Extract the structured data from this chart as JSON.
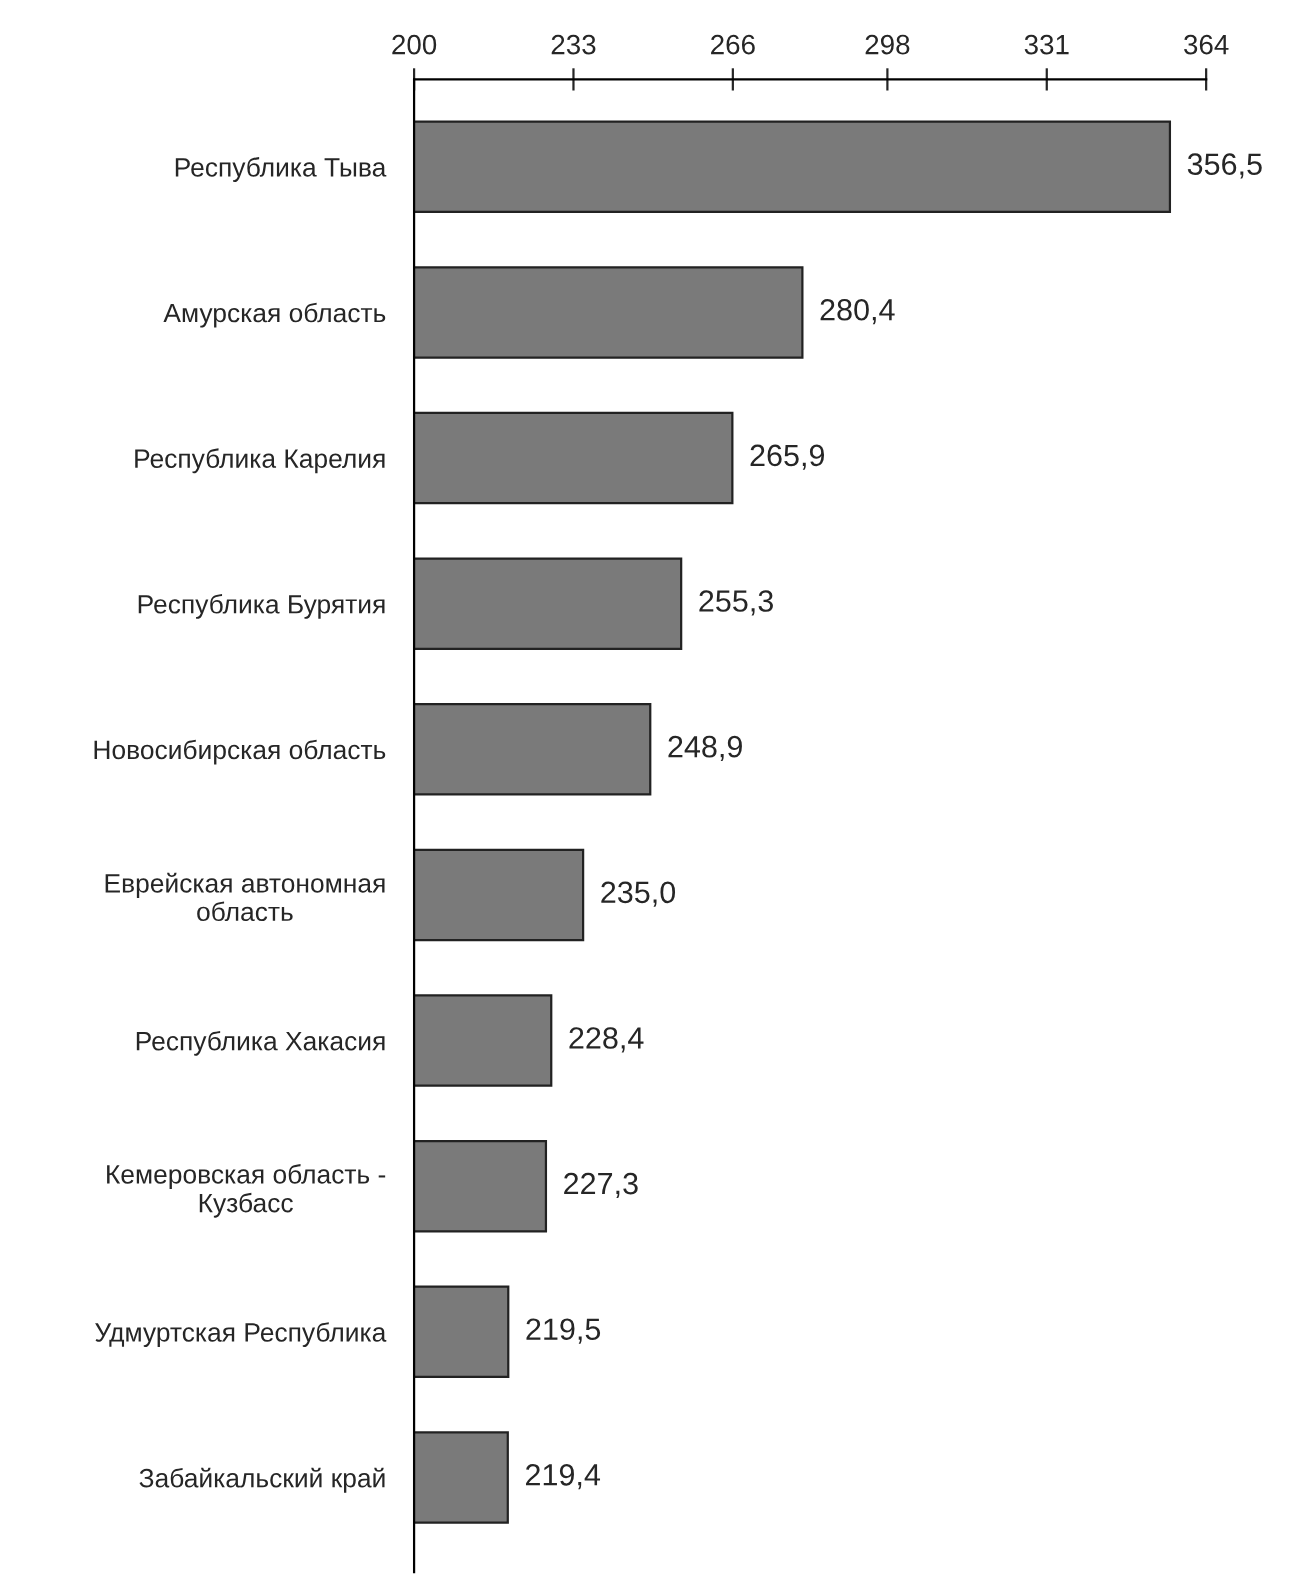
{
  "chart_data": {
    "type": "bar",
    "orientation": "horizontal",
    "categories": [
      "Республика Тыва",
      "Амурская область",
      "Республика Карелия",
      "Республика Бурятия",
      "Новосибирская область",
      "Еврейская автономная\nобласть",
      "Республика Хакасия",
      "Кемеровская область -\nКузбасс",
      "Удмуртская Республика",
      "Забайкальский край"
    ],
    "values": [
      356.5,
      280.4,
      265.9,
      255.3,
      248.9,
      235.0,
      228.4,
      227.3,
      219.5,
      219.4
    ],
    "value_labels": [
      "356,5",
      "280,4",
      "265,9",
      "255,3",
      "248,9",
      "235,0",
      "228,4",
      "227,3",
      "219,5",
      "219,4"
    ],
    "color": "#7a7a7a",
    "xlim": [
      200,
      364
    ],
    "xticks": [
      200,
      233,
      266,
      298,
      331,
      364
    ],
    "grid": false,
    "legend": false
  }
}
